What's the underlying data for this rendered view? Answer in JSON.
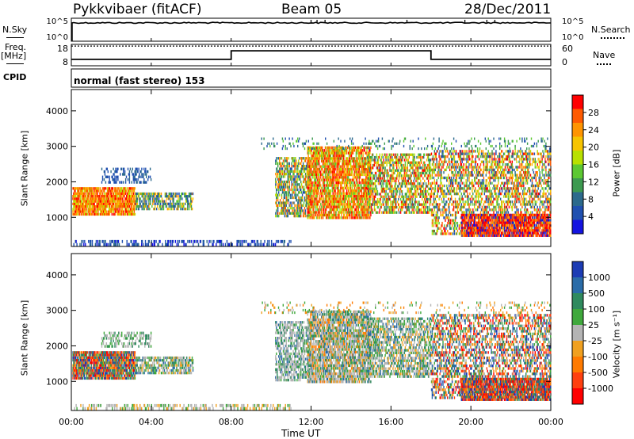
{
  "header": {
    "title": "Pykkvibaer (fitACF)",
    "beam": "Beam 05",
    "date": "28/Dec/2011"
  },
  "left_labels": {
    "nsky": "N.Sky",
    "freq": "Freq.",
    "mhz": "[MHz]",
    "cpid": "CPID"
  },
  "right_labels": {
    "nsearch": "N.Search",
    "nave": "Nave"
  },
  "cpid_text": "normal (fast stereo) 153",
  "chart_data": [
    {
      "type": "line",
      "name": "noise-panel",
      "y_left_ticks": [
        "10^5",
        "10^0"
      ],
      "y_right_ticks": [
        "10^5",
        "10^0"
      ],
      "noise_sky_level": 0.8,
      "noise_search_level": 0.55,
      "spikes_hours": [
        12.0,
        12.3,
        12.7,
        16.8,
        19.7,
        20.8,
        21.2
      ]
    },
    {
      "type": "line",
      "name": "frequency-panel",
      "y_left_ticks": [
        "18",
        "8"
      ],
      "y_right_ticks": [
        "60",
        "0"
      ],
      "freq_steps": [
        {
          "start": 0,
          "end": 8.0,
          "level": 0.3
        },
        {
          "start": 8.0,
          "end": 18.0,
          "level": 0.7
        },
        {
          "start": 18.0,
          "end": 24.0,
          "level": 0.3
        }
      ],
      "nave_dotted_level": 0.92
    },
    {
      "type": "heatmap",
      "name": "power-panel",
      "ylabel": "Slant Range [km]",
      "y_ticks": [
        "4000",
        "3000",
        "2000",
        "1000"
      ],
      "y_range": [
        180,
        4600
      ],
      "colorbar_label": "Power [dB]",
      "colorbar_ticks": [
        "28",
        "24",
        "20",
        "16",
        "12",
        "8",
        "4"
      ],
      "colorbar_colors": [
        "#ff0000",
        "#ff5a00",
        "#ff9400",
        "#f6c400",
        "#b8e000",
        "#5cc832",
        "#3c9a50",
        "#2c6a8c",
        "#2050b0",
        "#1414e0"
      ]
    },
    {
      "type": "heatmap",
      "name": "velocity-panel",
      "ylabel": "Slant Range [km]",
      "y_ticks": [
        "4000",
        "3000",
        "2000",
        "1000"
      ],
      "y_range": [
        180,
        4600
      ],
      "colorbar_label": "Velocity [m s⁻¹]",
      "colorbar_ticks": [
        "1000",
        "500",
        "100",
        "25",
        "-25",
        "-100",
        "-500",
        "-1000"
      ],
      "colorbar_colors": [
        "#1c3cb4",
        "#2a6ca8",
        "#2f8a5e",
        "#3fa83c",
        "#b4b4b4",
        "#f0a020",
        "#ff7a00",
        "#ff4010",
        "#ff0000"
      ]
    }
  ],
  "x_axis": {
    "ticks": [
      "00:00",
      "04:00",
      "08:00",
      "12:00",
      "16:00",
      "20:00",
      "00:00"
    ],
    "label": "Time UT"
  }
}
